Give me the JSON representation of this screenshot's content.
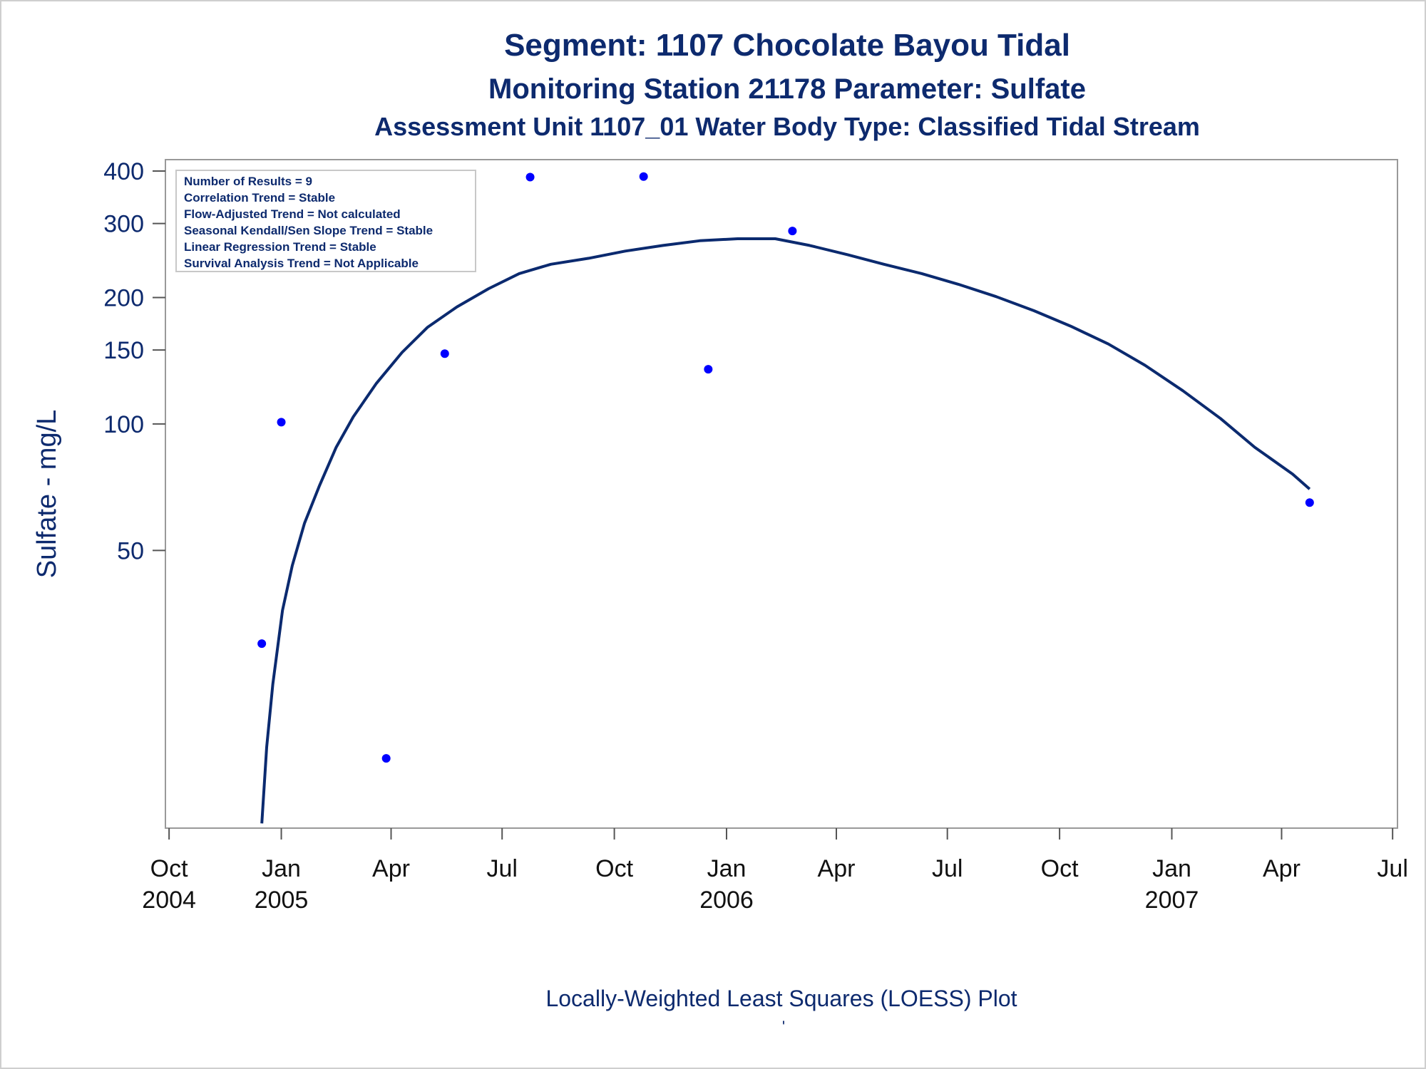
{
  "titles": {
    "line1": "Segment: 1107  Chocolate Bayou Tidal",
    "line2": "Monitoring Station 21178 Parameter: Sulfate",
    "line3": "Assessment Unit 1107_01   Water Body Type: Classified Tidal Stream"
  },
  "stats_box": [
    "Number of Results = 9",
    "Correlation Trend = Stable",
    "Flow-Adjusted Trend = Not calculated",
    "Seasonal Kendall/Sen Slope Trend = Stable",
    "Linear Regression Trend = Stable",
    "Survival Analysis Trend = Not Applicable"
  ],
  "footer": "Locally-Weighted Least Squares (LOESS) Plot",
  "footer_mark": "'",
  "colors": {
    "title": "#0d2a6e",
    "curve": "#0b2a6f",
    "points": "#0000ff",
    "frame": "#999999"
  },
  "chart_data": {
    "type": "scatter",
    "ylabel": "Sulfate - mg/L",
    "yscale": "log",
    "ylim": [
      11,
      400
    ],
    "yticks": [
      50,
      100,
      150,
      200,
      300,
      400
    ],
    "x_tick_labels": [
      {
        "line1": "Oct",
        "line2": "2004"
      },
      {
        "line1": "Jan",
        "line2": "2005"
      },
      {
        "line1": "Apr",
        "line2": ""
      },
      {
        "line1": "Jul",
        "line2": ""
      },
      {
        "line1": "Oct",
        "line2": ""
      },
      {
        "line1": "Jan",
        "line2": "2006"
      },
      {
        "line1": "Apr",
        "line2": ""
      },
      {
        "line1": "Jul",
        "line2": ""
      },
      {
        "line1": "Oct",
        "line2": ""
      },
      {
        "line1": "Jan",
        "line2": "2007"
      },
      {
        "line1": "Apr",
        "line2": ""
      },
      {
        "line1": "Jul",
        "line2": ""
      }
    ],
    "xlim": [
      "2004-09-28",
      "2007-07-05"
    ],
    "points": [
      {
        "x": "2004-12-16",
        "y": 30
      },
      {
        "x": "2005-01-01",
        "y": 101
      },
      {
        "x": "2005-03-28",
        "y": 16
      },
      {
        "x": "2005-05-15",
        "y": 147
      },
      {
        "x": "2005-07-24",
        "y": 387
      },
      {
        "x": "2005-10-25",
        "y": 388
      },
      {
        "x": "2005-12-17",
        "y": 135
      },
      {
        "x": "2006-02-24",
        "y": 288
      },
      {
        "x": "2007-04-24",
        "y": 65
      }
    ],
    "loess_curve": [
      {
        "x": "2004-12-16",
        "y": 11.2
      },
      {
        "x": "2004-12-20",
        "y": 17
      },
      {
        "x": "2004-12-25",
        "y": 24
      },
      {
        "x": "2005-01-02",
        "y": 36
      },
      {
        "x": "2005-01-10",
        "y": 46
      },
      {
        "x": "2005-01-20",
        "y": 58
      },
      {
        "x": "2005-02-01",
        "y": 71
      },
      {
        "x": "2005-02-15",
        "y": 88
      },
      {
        "x": "2005-03-01",
        "y": 104
      },
      {
        "x": "2005-03-20",
        "y": 125
      },
      {
        "x": "2005-04-10",
        "y": 148
      },
      {
        "x": "2005-05-01",
        "y": 170
      },
      {
        "x": "2005-05-25",
        "y": 190
      },
      {
        "x": "2005-06-20",
        "y": 210
      },
      {
        "x": "2005-07-15",
        "y": 228
      },
      {
        "x": "2005-08-10",
        "y": 240
      },
      {
        "x": "2005-09-10",
        "y": 248
      },
      {
        "x": "2005-10-10",
        "y": 258
      },
      {
        "x": "2005-11-10",
        "y": 266
      },
      {
        "x": "2005-12-10",
        "y": 273
      },
      {
        "x": "2006-01-10",
        "y": 276
      },
      {
        "x": "2006-02-10",
        "y": 276
      },
      {
        "x": "2006-03-10",
        "y": 266
      },
      {
        "x": "2006-04-10",
        "y": 253
      },
      {
        "x": "2006-05-10",
        "y": 240
      },
      {
        "x": "2006-06-10",
        "y": 228
      },
      {
        "x": "2006-07-10",
        "y": 215
      },
      {
        "x": "2006-08-10",
        "y": 201
      },
      {
        "x": "2006-09-10",
        "y": 186
      },
      {
        "x": "2006-10-10",
        "y": 171
      },
      {
        "x": "2006-11-10",
        "y": 155
      },
      {
        "x": "2006-12-10",
        "y": 138
      },
      {
        "x": "2007-01-10",
        "y": 120
      },
      {
        "x": "2007-02-10",
        "y": 103
      },
      {
        "x": "2007-03-10",
        "y": 88
      },
      {
        "x": "2007-04-10",
        "y": 76
      },
      {
        "x": "2007-04-24",
        "y": 70
      }
    ],
    "grid": false,
    "legend": "top-left stats box"
  }
}
